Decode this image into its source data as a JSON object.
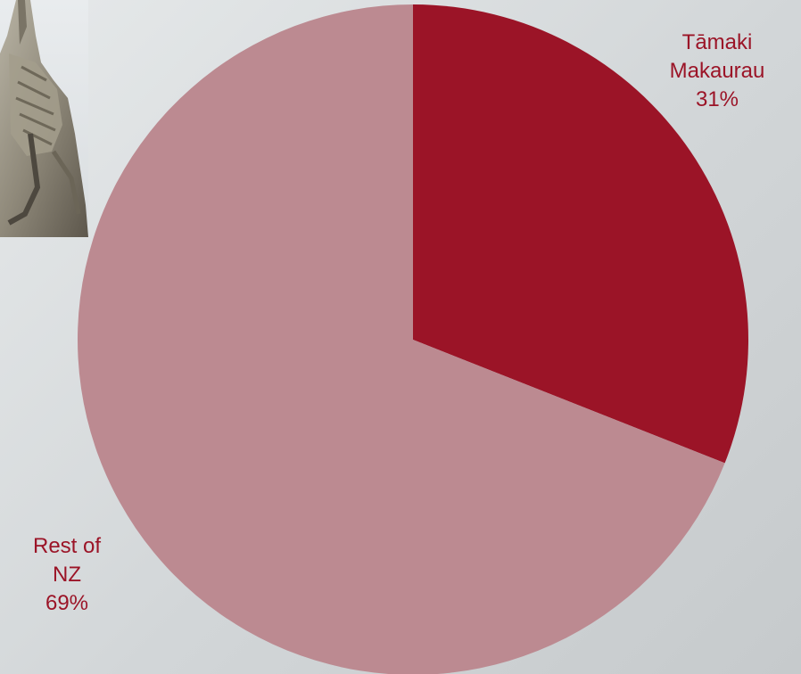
{
  "chart_data": {
    "type": "pie",
    "slices": [
      {
        "label_lines": [
          "Tāmaki",
          "Makaurau"
        ],
        "percent_label": "31%",
        "value": 31,
        "color": "#9b1427",
        "label_color": "#9b1427"
      },
      {
        "label_lines": [
          "Rest of",
          "NZ"
        ],
        "percent_label": "69%",
        "value": 69,
        "color": "#bc8a91",
        "label_color": "#9b1427"
      }
    ],
    "start_angle_deg": 0,
    "direction": "clockwise",
    "legend": "none",
    "title": ""
  },
  "photo": {
    "icon": "carved-statue-photo"
  }
}
